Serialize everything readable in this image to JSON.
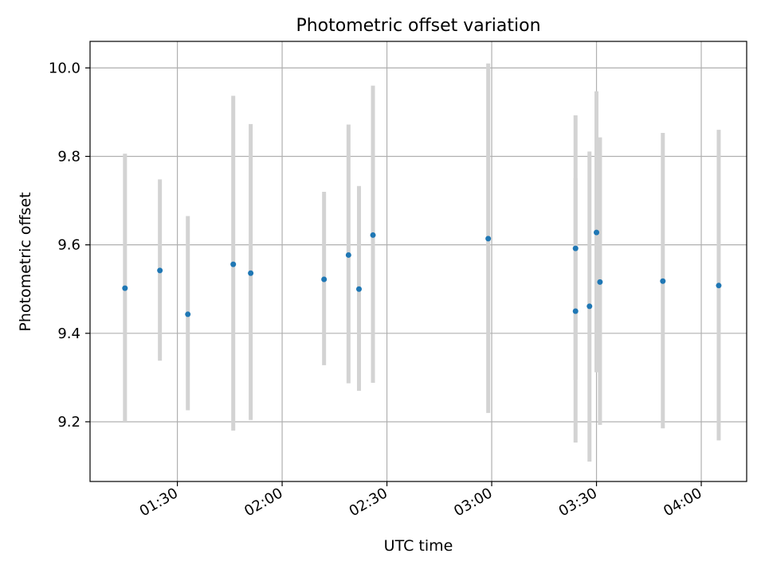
{
  "chart_data": {
    "type": "scatter",
    "title": "Photometric offset variation",
    "xlabel": "UTC time",
    "ylabel": "Photometric offset",
    "x_axis_type": "time",
    "xlim": [
      "01:05",
      "04:13"
    ],
    "ylim": [
      9.065,
      10.06
    ],
    "xticks": [
      "01:30",
      "02:00",
      "02:30",
      "03:00",
      "03:30",
      "04:00"
    ],
    "yticks": [
      "9.2",
      "9.4",
      "9.6",
      "9.8",
      "10.0"
    ],
    "grid": true,
    "x_tick_rotation": "30 degrees",
    "colors": {
      "points": "#1f77b4",
      "error_bars": "#d3d3d3",
      "grid": "#b0b0b0"
    },
    "points": [
      {
        "x": "01:15",
        "y": 9.502,
        "ymin": 9.2,
        "ymax": 9.806
      },
      {
        "x": "01:25",
        "y": 9.542,
        "ymin": 9.338,
        "ymax": 9.748
      },
      {
        "x": "01:33",
        "y": 9.443,
        "ymin": 9.226,
        "ymax": 9.665
      },
      {
        "x": "01:46",
        "y": 9.556,
        "ymin": 9.18,
        "ymax": 9.937
      },
      {
        "x": "01:51",
        "y": 9.536,
        "ymin": 9.204,
        "ymax": 9.873
      },
      {
        "x": "02:12",
        "y": 9.522,
        "ymin": 9.328,
        "ymax": 9.72
      },
      {
        "x": "02:19",
        "y": 9.577,
        "ymin": 9.287,
        "ymax": 9.872
      },
      {
        "x": "02:22",
        "y": 9.5,
        "ymin": 9.27,
        "ymax": 9.733
      },
      {
        "x": "02:26",
        "y": 9.622,
        "ymin": 9.288,
        "ymax": 9.96
      },
      {
        "x": "02:59",
        "y": 9.614,
        "ymin": 9.22,
        "ymax": 10.01
      },
      {
        "x": "03:24",
        "y": 9.45,
        "ymin": 9.153,
        "ymax": 9.751
      },
      {
        "x": "03:24",
        "y": 9.592,
        "ymin": 9.295,
        "ymax": 9.893
      },
      {
        "x": "03:28",
        "y": 9.461,
        "ymin": 9.11,
        "ymax": 9.811
      },
      {
        "x": "03:30",
        "y": 9.628,
        "ymin": 9.312,
        "ymax": 9.947
      },
      {
        "x": "03:31",
        "y": 9.516,
        "ymin": 9.193,
        "ymax": 9.843
      },
      {
        "x": "03:49",
        "y": 9.518,
        "ymin": 9.185,
        "ymax": 9.853
      },
      {
        "x": "04:05",
        "y": 9.508,
        "ymin": 9.158,
        "ymax": 9.86
      }
    ]
  }
}
